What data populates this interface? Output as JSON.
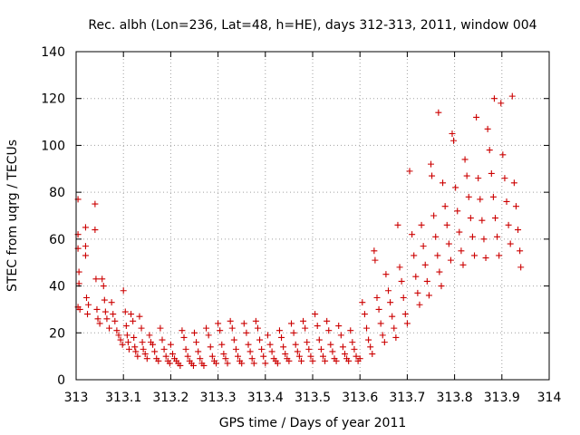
{
  "chart_data": {
    "type": "scatter",
    "title": "Rec. albh (Lon=236, Lat=48, h=HE), days 312-313, 2011, window 004",
    "xlabel": "GPS time / Days of year 2011",
    "ylabel": "STEC from uqrg / TECUs",
    "xlim": [
      313,
      314
    ],
    "ylim": [
      0,
      140
    ],
    "x_ticks": [
      313,
      313.1,
      313.2,
      313.3,
      313.4,
      313.5,
      313.6,
      313.7,
      313.8,
      313.9,
      314
    ],
    "x_tick_labels": [
      "313",
      "313.1",
      "313.2",
      "313.3",
      "313.4",
      "313.5",
      "313.6",
      "313.7",
      "313.8",
      "313.9",
      "314"
    ],
    "y_ticks": [
      0,
      20,
      40,
      60,
      80,
      100,
      120,
      140
    ],
    "y_tick_labels": [
      "0",
      "20",
      "40",
      "60",
      "80",
      "100",
      "120",
      "140"
    ],
    "grid": true,
    "marker": "plus",
    "color": "#cc0000",
    "points": [
      [
        313.004,
        77
      ],
      [
        313.004,
        62
      ],
      [
        313.004,
        56
      ],
      [
        313.006,
        46
      ],
      [
        313.006,
        41
      ],
      [
        313.004,
        31
      ],
      [
        313.008,
        30
      ],
      [
        313.02,
        65
      ],
      [
        313.02,
        57
      ],
      [
        313.02,
        53
      ],
      [
        313.022,
        35
      ],
      [
        313.026,
        32
      ],
      [
        313.024,
        28
      ],
      [
        313.04,
        75
      ],
      [
        313.04,
        64
      ],
      [
        313.042,
        43
      ],
      [
        313.044,
        30
      ],
      [
        313.046,
        26
      ],
      [
        313.05,
        24
      ],
      [
        313.055,
        43
      ],
      [
        313.058,
        40
      ],
      [
        313.06,
        34
      ],
      [
        313.062,
        29
      ],
      [
        313.065,
        26
      ],
      [
        313.07,
        22
      ],
      [
        313.075,
        33
      ],
      [
        313.078,
        28
      ],
      [
        313.082,
        25
      ],
      [
        313.086,
        21
      ],
      [
        313.09,
        19
      ],
      [
        313.094,
        17
      ],
      [
        313.098,
        15
      ],
      [
        313.1,
        38
      ],
      [
        313.104,
        29
      ],
      [
        313.106,
        23
      ],
      [
        313.108,
        19
      ],
      [
        313.11,
        16
      ],
      [
        313.112,
        13
      ],
      [
        313.116,
        28
      ],
      [
        313.12,
        25
      ],
      [
        313.122,
        18
      ],
      [
        313.124,
        14
      ],
      [
        313.126,
        12
      ],
      [
        313.13,
        10
      ],
      [
        313.134,
        27
      ],
      [
        313.138,
        22
      ],
      [
        313.14,
        16
      ],
      [
        313.142,
        13
      ],
      [
        313.146,
        11
      ],
      [
        313.15,
        9
      ],
      [
        313.155,
        19
      ],
      [
        313.158,
        16
      ],
      [
        313.162,
        15
      ],
      [
        313.166,
        12
      ],
      [
        313.17,
        9
      ],
      [
        313.174,
        8
      ],
      [
        313.178,
        22
      ],
      [
        313.182,
        17
      ],
      [
        313.186,
        13
      ],
      [
        313.19,
        10
      ],
      [
        313.194,
        8
      ],
      [
        313.198,
        7
      ],
      [
        313.2,
        15
      ],
      [
        313.204,
        11
      ],
      [
        313.208,
        9
      ],
      [
        313.212,
        8
      ],
      [
        313.216,
        7
      ],
      [
        313.22,
        6
      ],
      [
        313.224,
        21
      ],
      [
        313.228,
        18
      ],
      [
        313.232,
        13
      ],
      [
        313.236,
        10
      ],
      [
        313.24,
        8
      ],
      [
        313.244,
        7
      ],
      [
        313.248,
        6
      ],
      [
        313.25,
        20
      ],
      [
        313.254,
        16
      ],
      [
        313.258,
        12
      ],
      [
        313.262,
        9
      ],
      [
        313.266,
        7
      ],
      [
        313.27,
        6
      ],
      [
        313.275,
        22
      ],
      [
        313.28,
        19
      ],
      [
        313.284,
        14
      ],
      [
        313.288,
        10
      ],
      [
        313.292,
        8
      ],
      [
        313.296,
        7
      ],
      [
        313.3,
        24
      ],
      [
        313.304,
        21
      ],
      [
        313.308,
        15
      ],
      [
        313.312,
        11
      ],
      [
        313.316,
        9
      ],
      [
        313.32,
        7
      ],
      [
        313.326,
        25
      ],
      [
        313.33,
        22
      ],
      [
        313.334,
        17
      ],
      [
        313.338,
        13
      ],
      [
        313.342,
        10
      ],
      [
        313.346,
        8
      ],
      [
        313.35,
        7
      ],
      [
        313.355,
        24
      ],
      [
        313.36,
        20
      ],
      [
        313.364,
        15
      ],
      [
        313.368,
        12
      ],
      [
        313.372,
        9
      ],
      [
        313.376,
        7
      ],
      [
        313.38,
        25
      ],
      [
        313.384,
        22
      ],
      [
        313.388,
        17
      ],
      [
        313.392,
        13
      ],
      [
        313.396,
        10
      ],
      [
        313.4,
        7
      ],
      [
        313.405,
        19
      ],
      [
        313.41,
        15
      ],
      [
        313.414,
        12
      ],
      [
        313.418,
        9
      ],
      [
        313.422,
        8
      ],
      [
        313.426,
        7
      ],
      [
        313.43,
        21
      ],
      [
        313.434,
        18
      ],
      [
        313.438,
        14
      ],
      [
        313.442,
        11
      ],
      [
        313.446,
        9
      ],
      [
        313.45,
        8
      ],
      [
        313.455,
        24
      ],
      [
        313.46,
        20
      ],
      [
        313.464,
        15
      ],
      [
        313.468,
        12
      ],
      [
        313.472,
        10
      ],
      [
        313.476,
        8
      ],
      [
        313.48,
        25
      ],
      [
        313.484,
        22
      ],
      [
        313.488,
        16
      ],
      [
        313.492,
        13
      ],
      [
        313.496,
        10
      ],
      [
        313.5,
        8
      ],
      [
        313.505,
        28
      ],
      [
        313.51,
        23
      ],
      [
        313.514,
        17
      ],
      [
        313.518,
        13
      ],
      [
        313.522,
        10
      ],
      [
        313.526,
        8
      ],
      [
        313.53,
        25
      ],
      [
        313.534,
        21
      ],
      [
        313.538,
        15
      ],
      [
        313.542,
        12
      ],
      [
        313.546,
        9
      ],
      [
        313.55,
        8
      ],
      [
        313.555,
        23
      ],
      [
        313.56,
        19
      ],
      [
        313.564,
        14
      ],
      [
        313.568,
        11
      ],
      [
        313.572,
        9
      ],
      [
        313.576,
        8
      ],
      [
        313.58,
        21
      ],
      [
        313.584,
        16
      ],
      [
        313.588,
        13
      ],
      [
        313.592,
        10
      ],
      [
        313.596,
        8
      ],
      [
        313.6,
        9
      ],
      [
        313.605,
        33
      ],
      [
        313.61,
        28
      ],
      [
        313.614,
        22
      ],
      [
        313.618,
        17
      ],
      [
        313.622,
        14
      ],
      [
        313.626,
        11
      ],
      [
        313.63,
        55
      ],
      [
        313.632,
        51
      ],
      [
        313.636,
        35
      ],
      [
        313.64,
        30
      ],
      [
        313.644,
        24
      ],
      [
        313.648,
        19
      ],
      [
        313.652,
        16
      ],
      [
        313.655,
        45
      ],
      [
        313.66,
        38
      ],
      [
        313.664,
        33
      ],
      [
        313.668,
        27
      ],
      [
        313.672,
        22
      ],
      [
        313.676,
        18
      ],
      [
        313.68,
        66
      ],
      [
        313.684,
        48
      ],
      [
        313.688,
        42
      ],
      [
        313.692,
        35
      ],
      [
        313.696,
        28
      ],
      [
        313.7,
        24
      ],
      [
        313.705,
        89
      ],
      [
        313.71,
        62
      ],
      [
        313.714,
        53
      ],
      [
        313.718,
        44
      ],
      [
        313.722,
        37
      ],
      [
        313.726,
        32
      ],
      [
        313.73,
        66
      ],
      [
        313.734,
        57
      ],
      [
        313.738,
        49
      ],
      [
        313.742,
        42
      ],
      [
        313.746,
        36
      ],
      [
        313.75,
        92
      ],
      [
        313.752,
        87
      ],
      [
        313.756,
        70
      ],
      [
        313.76,
        61
      ],
      [
        313.764,
        53
      ],
      [
        313.768,
        46
      ],
      [
        313.772,
        40
      ],
      [
        313.766,
        114
      ],
      [
        313.775,
        84
      ],
      [
        313.78,
        74
      ],
      [
        313.784,
        66
      ],
      [
        313.788,
        58
      ],
      [
        313.792,
        51
      ],
      [
        313.795,
        105
      ],
      [
        313.798,
        102
      ],
      [
        313.802,
        82
      ],
      [
        313.806,
        72
      ],
      [
        313.81,
        63
      ],
      [
        313.814,
        55
      ],
      [
        313.818,
        49
      ],
      [
        313.822,
        94
      ],
      [
        313.826,
        87
      ],
      [
        313.83,
        78
      ],
      [
        313.834,
        69
      ],
      [
        313.838,
        61
      ],
      [
        313.842,
        53
      ],
      [
        313.846,
        112
      ],
      [
        313.85,
        86
      ],
      [
        313.854,
        77
      ],
      [
        313.858,
        68
      ],
      [
        313.862,
        60
      ],
      [
        313.866,
        52
      ],
      [
        313.87,
        107
      ],
      [
        313.874,
        98
      ],
      [
        313.878,
        88
      ],
      [
        313.882,
        78
      ],
      [
        313.886,
        69
      ],
      [
        313.89,
        61
      ],
      [
        313.894,
        53
      ],
      [
        313.884,
        120
      ],
      [
        313.898,
        118
      ],
      [
        313.902,
        96
      ],
      [
        313.906,
        86
      ],
      [
        313.91,
        76
      ],
      [
        313.914,
        66
      ],
      [
        313.918,
        58
      ],
      [
        313.922,
        121
      ],
      [
        313.926,
        84
      ],
      [
        313.93,
        74
      ],
      [
        313.934,
        64
      ],
      [
        313.938,
        55
      ],
      [
        313.94,
        48
      ]
    ]
  }
}
